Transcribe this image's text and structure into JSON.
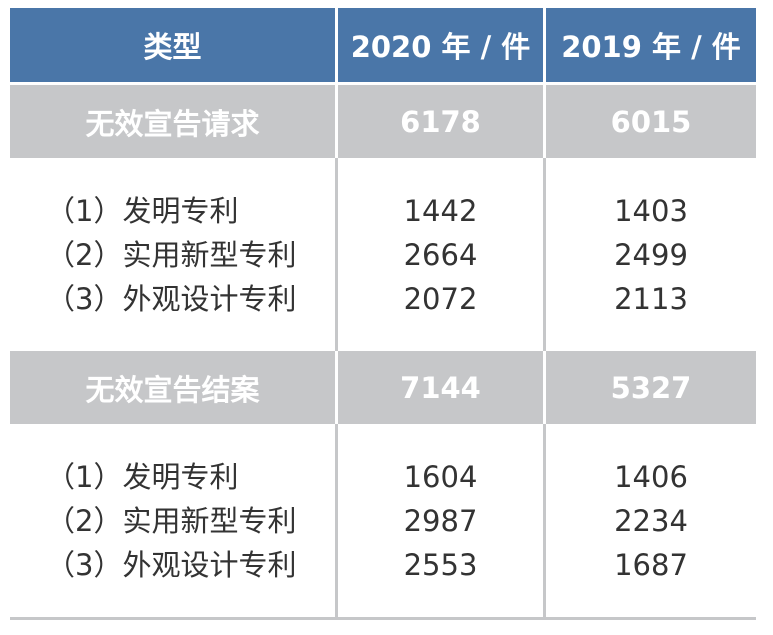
{
  "header": {
    "type": "类型",
    "col2020": "2020 年 / 件",
    "col2019": "2019 年 / 件"
  },
  "sections": [
    {
      "title": "无效宣告请求",
      "v2020": "6178",
      "v2019": "6015",
      "items": [
        {
          "label": "（1）发明专利",
          "v2020": "1442",
          "v2019": "1403"
        },
        {
          "label": "（2）实用新型专利",
          "v2020": "2664",
          "v2019": "2499"
        },
        {
          "label": "（3）外观设计专利",
          "v2020": "2072",
          "v2019": "2113"
        }
      ]
    },
    {
      "title": "无效宣告结案",
      "v2020": "7144",
      "v2019": "5327",
      "items": [
        {
          "label": "（1）发明专利",
          "v2020": "1604",
          "v2019": "1406"
        },
        {
          "label": "（2）实用新型专利",
          "v2020": "2987",
          "v2019": "2234"
        },
        {
          "label": "（3）外观设计专利",
          "v2020": "2553",
          "v2019": "1687"
        }
      ]
    }
  ],
  "colors": {
    "header_bg": "#4a76a8",
    "section_bg": "#c6c7c9"
  }
}
